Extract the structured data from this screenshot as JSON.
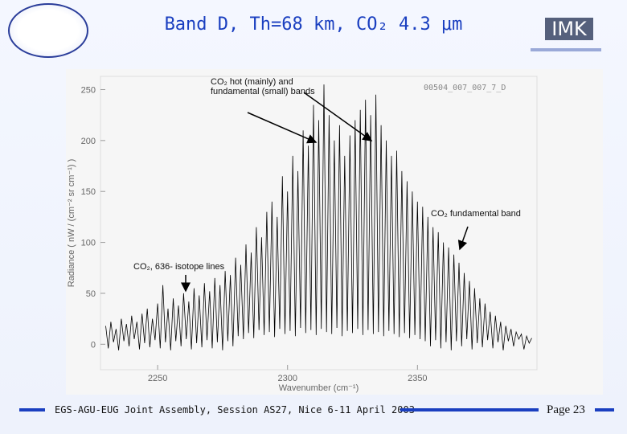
{
  "chart_data": {
    "type": "line",
    "title": "Band D, Th=68 km, CO₂ 4.3 μm",
    "logo_text": "IMK",
    "footer": "EGS-AGU-EUG Joint Assembly, Session AS27, Nice 6-11 April 2003",
    "page": "Page 23",
    "xlabel": "Wavenumber (cm⁻¹)",
    "ylabel": "Radiance ( nW / (cm⁻² sr cm⁻¹) )",
    "annotations": [
      "CO₂ hot (mainly) and fundamental (small) bands",
      "CO₂ fundamental band",
      "CO₂, 636- isotope lines",
      "00504_007_007_7_D"
    ],
    "color": "#000000",
    "xlim": [
      2228,
      2396
    ],
    "xticks": [
      2250,
      2300,
      2350
    ],
    "ylim": [
      -25,
      263
    ],
    "yticks": [
      0,
      50,
      100,
      150,
      200,
      250
    ],
    "x": [
      2230,
      2231,
      2232,
      2233,
      2234,
      2235,
      2236,
      2237,
      2238,
      2239,
      2240,
      2241,
      2242,
      2243,
      2244,
      2245,
      2246,
      2247,
      2248,
      2249,
      2250,
      2251,
      2252,
      2253,
      2254,
      2255,
      2256,
      2257,
      2258,
      2259,
      2260,
      2261,
      2262,
      2263,
      2264,
      2265,
      2266,
      2267,
      2268,
      2269,
      2270,
      2271,
      2272,
      2273,
      2274,
      2275,
      2276,
      2277,
      2278,
      2279,
      2280,
      2281,
      2282,
      2283,
      2284,
      2285,
      2286,
      2287,
      2288,
      2289,
      2290,
      2291,
      2292,
      2293,
      2294,
      2295,
      2296,
      2297,
      2298,
      2299,
      2300,
      2301,
      2302,
      2303,
      2304,
      2305,
      2306,
      2307,
      2308,
      2309,
      2310,
      2311,
      2312,
      2313,
      2314,
      2315,
      2316,
      2317,
      2318,
      2319,
      2320,
      2321,
      2322,
      2323,
      2324,
      2325,
      2326,
      2327,
      2328,
      2329,
      2330,
      2331,
      2332,
      2333,
      2334,
      2335,
      2336,
      2337,
      2338,
      2339,
      2340,
      2341,
      2342,
      2343,
      2344,
      2345,
      2346,
      2347,
      2348,
      2349,
      2350,
      2351,
      2352,
      2353,
      2354,
      2355,
      2356,
      2357,
      2358,
      2359,
      2360,
      2361,
      2362,
      2363,
      2364,
      2365,
      2366,
      2367,
      2368,
      2369,
      2370,
      2371,
      2372,
      2373,
      2374,
      2375,
      2376,
      2377,
      2378,
      2379,
      2380,
      2381,
      2382,
      2383,
      2384,
      2385,
      2386,
      2387,
      2388,
      2389,
      2390,
      2391,
      2392,
      2393,
      2394
    ],
    "values": [
      18,
      -4,
      22,
      2,
      15,
      -6,
      25,
      3,
      20,
      -2,
      28,
      5,
      22,
      -5,
      30,
      1,
      35,
      -3,
      25,
      4,
      40,
      -4,
      58,
      2,
      35,
      -6,
      45,
      3,
      38,
      -2,
      50,
      5,
      42,
      -5,
      55,
      1,
      48,
      -3,
      60,
      4,
      52,
      -4,
      65,
      2,
      58,
      -6,
      72,
      3,
      68,
      -2,
      85,
      8,
      78,
      5,
      98,
      11,
      90,
      6,
      115,
      14,
      105,
      9,
      130,
      12,
      140,
      7,
      125,
      15,
      165,
      10,
      150,
      13,
      185,
      8,
      170,
      16,
      210,
      11,
      195,
      14,
      235,
      9,
      220,
      15,
      255,
      12,
      225,
      10,
      200,
      16,
      215,
      8,
      185,
      13,
      205,
      11,
      220,
      15,
      230,
      9,
      240,
      14,
      225,
      10,
      245,
      12,
      215,
      8,
      200,
      13,
      185,
      10,
      190,
      7,
      170,
      11,
      160,
      6,
      150,
      9,
      140,
      5,
      135,
      3,
      125,
      -2,
      115,
      4,
      110,
      -4,
      100,
      2,
      95,
      -6,
      88,
      3,
      80,
      -2,
      70,
      5,
      62,
      -5,
      55,
      1,
      45,
      -3,
      40,
      4,
      32,
      -4,
      28,
      2,
      22,
      -6,
      18,
      3,
      15,
      -2,
      12,
      5,
      10,
      -5,
      8,
      1,
      6
    ]
  }
}
